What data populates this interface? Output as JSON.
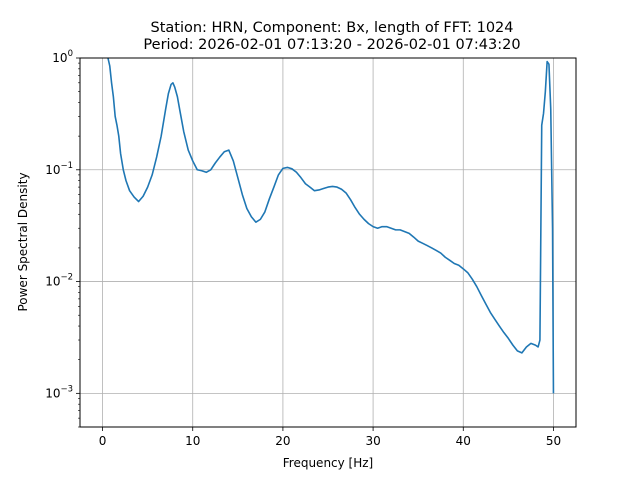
{
  "chart_data": {
    "type": "line",
    "title_line1": "Station: HRN, Component: Bx, length of FFT: 1024",
    "title_line2": "Period: 2026-02-01 07:13:20 - 2026-02-01 07:43:20",
    "xlabel": "Frequency [Hz]",
    "ylabel": "Power Spectral Density",
    "yscale": "log",
    "xlim": [
      -2.5,
      52.5
    ],
    "ylim": [
      0.0005,
      1
    ],
    "grid": true,
    "x_ticks": [
      0,
      10,
      20,
      30,
      40,
      50
    ],
    "y_ticks": [
      {
        "value": 0.001,
        "base": "10",
        "exp": "−3"
      },
      {
        "value": 0.01,
        "base": "10",
        "exp": "−2"
      },
      {
        "value": 0.1,
        "base": "10",
        "exp": "−1"
      },
      {
        "value": 1,
        "base": "10",
        "exp": "0"
      }
    ],
    "line_color": "#1f77b4",
    "series": [
      {
        "x": [
          0.6,
          0.8,
          1.0,
          1.2,
          1.4,
          1.6,
          1.8,
          2.0,
          2.3,
          2.6,
          3.0,
          3.5,
          4.0,
          4.5,
          5.0,
          5.5,
          6.0,
          6.5,
          7.0,
          7.3,
          7.6,
          7.8,
          8.0,
          8.3,
          8.6,
          9.0,
          9.5,
          10.0,
          10.5,
          11.0,
          11.5,
          12.0,
          12.5,
          13.0,
          13.5,
          14.0,
          14.5,
          15.0,
          15.5,
          16.0,
          16.5,
          17.0,
          17.5,
          18.0,
          18.5,
          19.0,
          19.5,
          20.0,
          20.5,
          21.0,
          21.5,
          22.0,
          22.5,
          23.0,
          23.5,
          24.0,
          24.5,
          25.0,
          25.5,
          26.0,
          26.5,
          27.0,
          27.5,
          28.0,
          28.5,
          29.0,
          29.5,
          30.0,
          30.5,
          31.0,
          31.5,
          32.0,
          32.5,
          33.0,
          33.5,
          34.0,
          34.5,
          35.0,
          35.5,
          36.0,
          36.5,
          37.0,
          37.5,
          38.0,
          38.5,
          39.0,
          39.5,
          40.0,
          40.5,
          41.0,
          41.5,
          42.0,
          42.5,
          43.0,
          43.5,
          44.0,
          44.5,
          45.0,
          45.5,
          46.0,
          46.5,
          47.0,
          47.5,
          48.0,
          48.3,
          48.5,
          48.7,
          48.9,
          49.1,
          49.3,
          49.5,
          49.7,
          49.9,
          50.0
        ],
        "y": [
          1.0,
          0.85,
          0.6,
          0.45,
          0.3,
          0.25,
          0.2,
          0.14,
          0.1,
          0.08,
          0.065,
          0.057,
          0.052,
          0.058,
          0.07,
          0.09,
          0.13,
          0.2,
          0.35,
          0.48,
          0.58,
          0.6,
          0.55,
          0.45,
          0.33,
          0.22,
          0.15,
          0.12,
          0.1,
          0.098,
          0.095,
          0.1,
          0.115,
          0.13,
          0.145,
          0.15,
          0.12,
          0.085,
          0.06,
          0.045,
          0.038,
          0.034,
          0.036,
          0.042,
          0.055,
          0.07,
          0.09,
          0.103,
          0.105,
          0.102,
          0.095,
          0.085,
          0.075,
          0.07,
          0.065,
          0.066,
          0.068,
          0.07,
          0.071,
          0.07,
          0.067,
          0.062,
          0.054,
          0.046,
          0.04,
          0.036,
          0.033,
          0.031,
          0.03,
          0.031,
          0.031,
          0.03,
          0.029,
          0.029,
          0.028,
          0.027,
          0.025,
          0.023,
          0.022,
          0.021,
          0.02,
          0.019,
          0.018,
          0.0165,
          0.0155,
          0.0145,
          0.014,
          0.013,
          0.012,
          0.0105,
          0.009,
          0.0075,
          0.0063,
          0.0053,
          0.0046,
          0.004,
          0.0035,
          0.0031,
          0.0027,
          0.0024,
          0.0023,
          0.0026,
          0.0028,
          0.0027,
          0.0026,
          0.003,
          0.25,
          0.32,
          0.5,
          0.93,
          0.88,
          0.35,
          0.03,
          0.001
        ]
      }
    ]
  }
}
